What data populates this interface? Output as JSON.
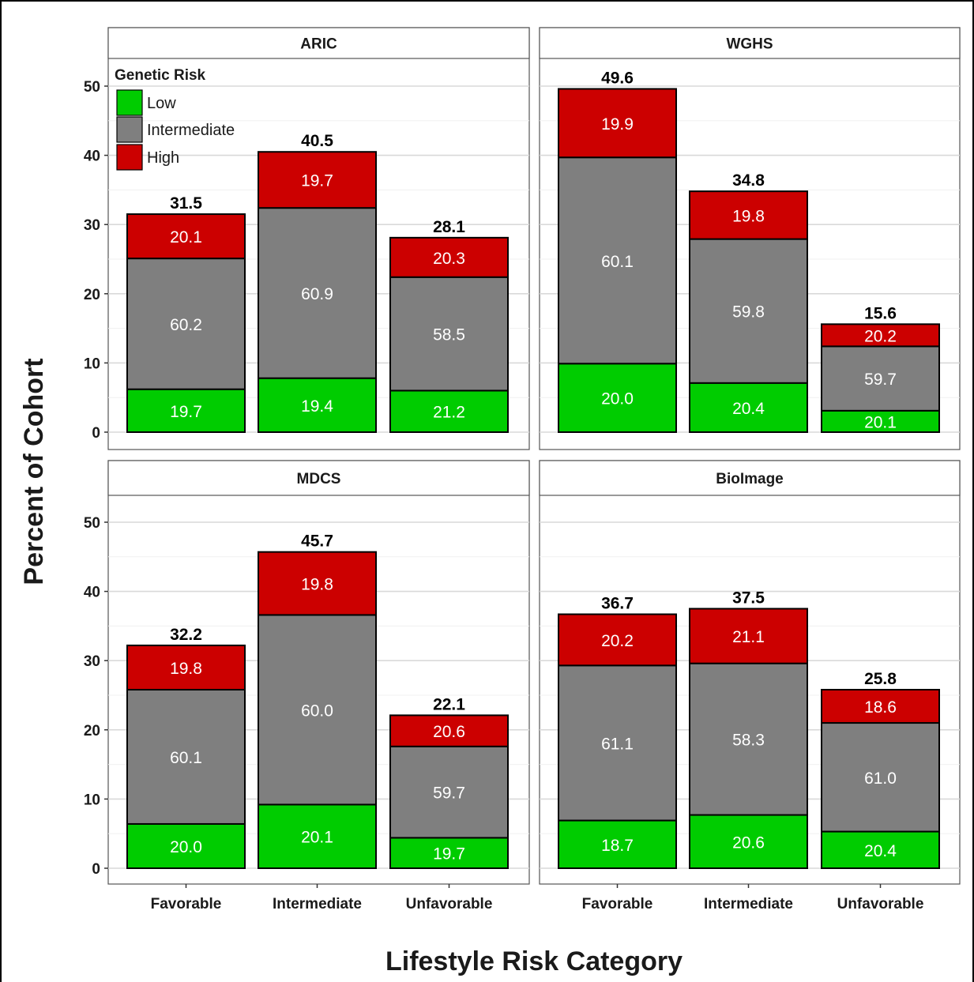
{
  "chart_data": {
    "type": "bar",
    "stacked": true,
    "xlabel": "Lifestyle Risk Category",
    "ylabel": "Percent of Cohort",
    "ylim": [
      0,
      52.5
    ],
    "yticks": [
      0,
      10,
      20,
      30,
      40,
      50
    ],
    "categories": [
      "Favorable",
      "Intermediate",
      "Unfavorable"
    ],
    "legend": {
      "title": "Genetic Risk",
      "placement": "top-left inside first panel",
      "entries": [
        "Low",
        "Intermediate",
        "High"
      ]
    },
    "colors": {
      "Low": "#00cc00",
      "Intermediate": "#7f7f7f",
      "High": "#cc0000"
    },
    "grid": true,
    "panels": [
      {
        "title": "ARIC",
        "totals": [
          "31.5",
          "40.5",
          "28.1"
        ],
        "segments": [
          [
            {
              "group": "Low",
              "height": 6.2,
              "label": "19.7"
            },
            {
              "group": "Intermediate",
              "height": 18.9,
              "label": "60.2"
            },
            {
              "group": "High",
              "height": 6.4,
              "label": "20.1"
            }
          ],
          [
            {
              "group": "Low",
              "height": 7.8,
              "label": "19.4"
            },
            {
              "group": "Intermediate",
              "height": 24.6,
              "label": "60.9"
            },
            {
              "group": "High",
              "height": 8.1,
              "label": "19.7"
            }
          ],
          [
            {
              "group": "Low",
              "height": 6.0,
              "label": "21.2"
            },
            {
              "group": "Intermediate",
              "height": 16.4,
              "label": "58.5"
            },
            {
              "group": "High",
              "height": 5.7,
              "label": "20.3"
            }
          ]
        ]
      },
      {
        "title": "WGHS",
        "totals": [
          "49.6",
          "34.8",
          "15.6"
        ],
        "segments": [
          [
            {
              "group": "Low",
              "height": 9.9,
              "label": "20.0"
            },
            {
              "group": "Intermediate",
              "height": 29.8,
              "label": "60.1"
            },
            {
              "group": "High",
              "height": 9.9,
              "label": "19.9"
            }
          ],
          [
            {
              "group": "Low",
              "height": 7.1,
              "label": "20.4"
            },
            {
              "group": "Intermediate",
              "height": 20.8,
              "label": "59.8"
            },
            {
              "group": "High",
              "height": 6.9,
              "label": "19.8"
            }
          ],
          [
            {
              "group": "Low",
              "height": 3.1,
              "label": "20.1"
            },
            {
              "group": "Intermediate",
              "height": 9.3,
              "label": "59.7"
            },
            {
              "group": "High",
              "height": 3.2,
              "label": "20.2"
            }
          ]
        ]
      },
      {
        "title": "MDCS",
        "totals": [
          "32.2",
          "45.7",
          "22.1"
        ],
        "segments": [
          [
            {
              "group": "Low",
              "height": 6.4,
              "label": "20.0"
            },
            {
              "group": "Intermediate",
              "height": 19.4,
              "label": "60.1"
            },
            {
              "group": "High",
              "height": 6.4,
              "label": "19.8"
            }
          ],
          [
            {
              "group": "Low",
              "height": 9.2,
              "label": "20.1"
            },
            {
              "group": "Intermediate",
              "height": 27.4,
              "label": "60.0"
            },
            {
              "group": "High",
              "height": 9.1,
              "label": "19.8"
            }
          ],
          [
            {
              "group": "Low",
              "height": 4.4,
              "label": "19.7"
            },
            {
              "group": "Intermediate",
              "height": 13.2,
              "label": "59.7"
            },
            {
              "group": "High",
              "height": 4.5,
              "label": "20.6"
            }
          ]
        ]
      },
      {
        "title": "BioImage",
        "totals": [
          "36.7",
          "37.5",
          "25.8"
        ],
        "segments": [
          [
            {
              "group": "Low",
              "height": 6.9,
              "label": "18.7"
            },
            {
              "group": "Intermediate",
              "height": 22.4,
              "label": "61.1"
            },
            {
              "group": "High",
              "height": 7.4,
              "label": "20.2"
            }
          ],
          [
            {
              "group": "Low",
              "height": 7.7,
              "label": "20.6"
            },
            {
              "group": "Intermediate",
              "height": 21.9,
              "label": "58.3"
            },
            {
              "group": "High",
              "height": 7.9,
              "label": "21.1"
            }
          ],
          [
            {
              "group": "Low",
              "height": 5.3,
              "label": "20.4"
            },
            {
              "group": "Intermediate",
              "height": 15.7,
              "label": "61.0"
            },
            {
              "group": "High",
              "height": 4.8,
              "label": "18.6"
            }
          ]
        ]
      }
    ]
  }
}
